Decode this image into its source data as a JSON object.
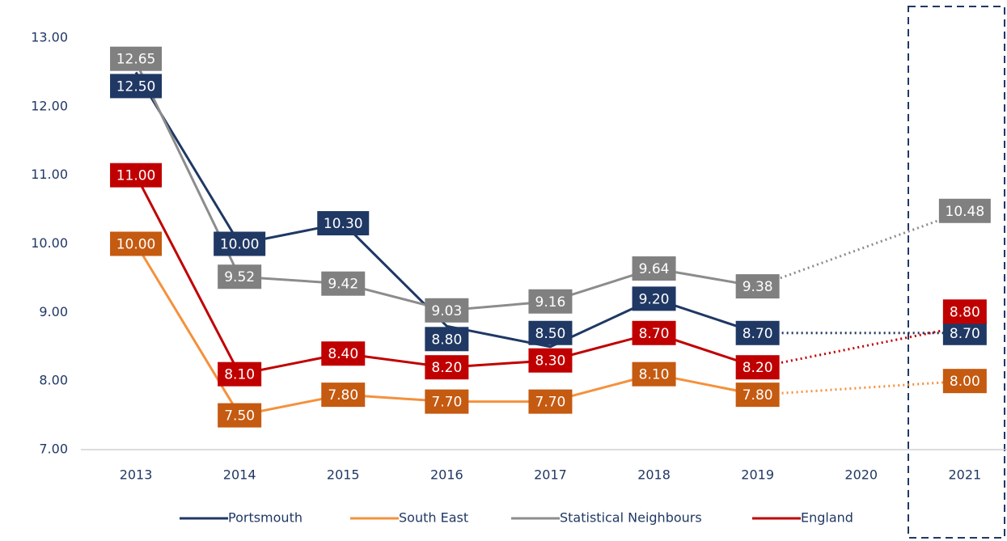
{
  "chart_data": {
    "type": "line",
    "categories": [
      "2013",
      "2014",
      "2015",
      "2016",
      "2017",
      "2018",
      "2019",
      "2020",
      "2021"
    ],
    "series": [
      {
        "name": "Portsmouth",
        "color": "#1f3864",
        "values": [
          12.5,
          10,
          10.3,
          8.8,
          8.5,
          9.2,
          8.7,
          null,
          8.7
        ],
        "value_labels": [
          "12.50",
          "10.00",
          "10.30",
          "8.80",
          "8.50",
          "9.20",
          "8.70",
          null,
          "8.70"
        ]
      },
      {
        "name": "South East",
        "color": "#f4913c",
        "values": [
          10,
          7.5,
          7.8,
          7.7,
          7.7,
          8.1,
          7.8,
          null,
          8.0
        ],
        "value_labels": [
          "10.00",
          "7.50",
          "7.80",
          "7.70",
          "7.70",
          "8.10",
          "7.80",
          null,
          "8.00"
        ]
      },
      {
        "name": "Statistical Neighbours",
        "color": "#8c8c8c",
        "values": [
          12.65,
          9.52,
          9.42,
          9.03,
          9.16,
          9.64,
          9.38,
          null,
          10.48
        ],
        "value_labels": [
          "12.65",
          "9.52",
          "9.42",
          "9.03",
          "9.16",
          "9.64",
          "9.38",
          null,
          "10.48"
        ]
      },
      {
        "name": "England",
        "color": "#c00000",
        "values": [
          11,
          8.1,
          8.4,
          8.2,
          8.3,
          8.7,
          8.2,
          null,
          8.8
        ],
        "value_labels": [
          "11.00",
          "8.10",
          "8.40",
          "8.20",
          "8.30",
          "8.70",
          "8.20",
          null,
          "8.80"
        ]
      }
    ],
    "ylim": [
      7,
      13
    ],
    "yticks": [
      {
        "value": 7,
        "label": "7.00"
      },
      {
        "value": 8,
        "label": "8.00"
      },
      {
        "value": 9,
        "label": "9.00"
      },
      {
        "value": 10,
        "label": "10.00"
      },
      {
        "value": 11,
        "label": "11.00"
      },
      {
        "value": 12,
        "label": "12.00"
      },
      {
        "value": 13,
        "label": "13.00"
      }
    ],
    "legend": "bottom"
  }
}
